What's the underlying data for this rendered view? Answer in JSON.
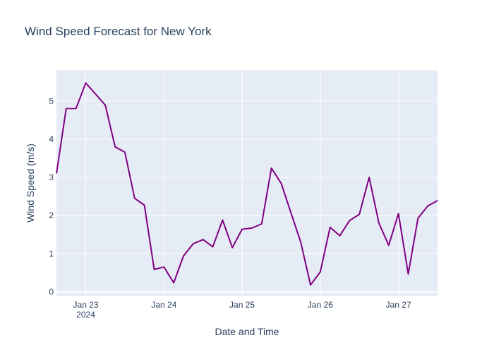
{
  "chart_data": {
    "type": "line",
    "title": "Wind Speed Forecast for New York",
    "xlabel": "Date and Time",
    "ylabel": "Wind Speed (m/s)",
    "x_tick_labels": [
      "Jan 23",
      "Jan 24",
      "Jan 25",
      "Jan 26",
      "Jan 27"
    ],
    "x_tick_year": "2024",
    "y_ticks": [
      0,
      1,
      2,
      3,
      4,
      5
    ],
    "ylim": [
      -0.1,
      5.8
    ],
    "xlim": [
      "2024-01-22 15:00",
      "2024-01-27 12:00"
    ],
    "grid": true,
    "series": [
      {
        "color": "#800080",
        "x": [
          "2024-01-22 15:00",
          "2024-01-22 18:00",
          "2024-01-22 21:00",
          "2024-01-23 00:00",
          "2024-01-23 03:00",
          "2024-01-23 06:00",
          "2024-01-23 09:00",
          "2024-01-23 12:00",
          "2024-01-23 15:00",
          "2024-01-23 18:00",
          "2024-01-23 21:00",
          "2024-01-24 00:00",
          "2024-01-24 03:00",
          "2024-01-24 06:00",
          "2024-01-24 09:00",
          "2024-01-24 12:00",
          "2024-01-24 15:00",
          "2024-01-24 18:00",
          "2024-01-24 21:00",
          "2024-01-25 00:00",
          "2024-01-25 03:00",
          "2024-01-25 06:00",
          "2024-01-25 09:00",
          "2024-01-25 12:00",
          "2024-01-25 15:00",
          "2024-01-25 18:00",
          "2024-01-25 21:00",
          "2024-01-26 00:00",
          "2024-01-26 03:00",
          "2024-01-26 06:00",
          "2024-01-26 09:00",
          "2024-01-26 12:00",
          "2024-01-26 15:00",
          "2024-01-26 18:00",
          "2024-01-26 21:00",
          "2024-01-27 00:00",
          "2024-01-27 03:00",
          "2024-01-27 06:00",
          "2024-01-27 09:00",
          "2024-01-27 12:00"
        ],
        "values": [
          3.1,
          4.8,
          4.8,
          5.47,
          5.18,
          4.89,
          3.8,
          3.66,
          2.45,
          2.27,
          0.59,
          0.65,
          0.24,
          0.94,
          1.26,
          1.37,
          1.18,
          1.88,
          1.16,
          1.64,
          1.67,
          1.78,
          3.24,
          2.84,
          2.07,
          1.3,
          0.18,
          0.52,
          1.69,
          1.47,
          1.87,
          2.03,
          3.0,
          1.8,
          1.22,
          2.05,
          0.47,
          1.93,
          2.25,
          2.39
        ]
      }
    ]
  }
}
